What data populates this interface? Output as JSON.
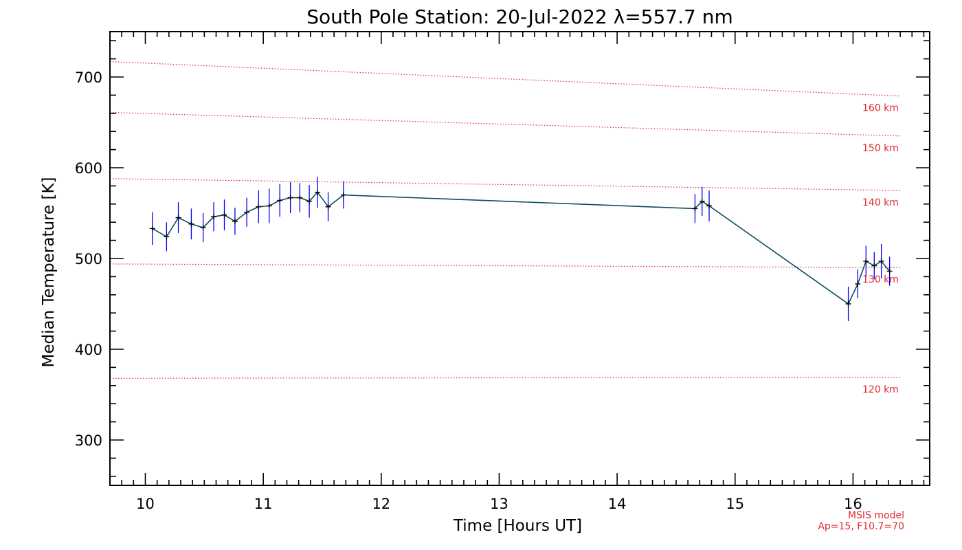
{
  "chart_data": {
    "type": "line",
    "title": "South Pole Station: 20-Jul-2022 λ=557.7 nm",
    "xlabel": "Time [Hours UT]",
    "ylabel": "Median Temperature [K]",
    "xlim": [
      9.7,
      16.65
    ],
    "ylim": [
      250,
      750
    ],
    "xticks": [
      10,
      11,
      12,
      13,
      14,
      15,
      16
    ],
    "yticks": [
      300,
      400,
      500,
      600,
      700
    ],
    "grid": false,
    "colors": {
      "line": "#0d4a5e",
      "marker": "#000000",
      "error_bar": "#0000ff",
      "model": "#e0282e"
    },
    "series": [
      {
        "x": [
          10.06,
          10.18,
          10.28,
          10.39,
          10.49,
          10.58,
          10.67,
          10.76,
          10.86,
          10.96,
          11.05,
          11.14,
          11.23,
          11.31,
          11.39,
          11.46,
          11.55,
          11.68,
          14.66,
          14.72,
          14.78,
          15.96,
          16.04,
          16.11,
          16.18,
          16.24,
          16.31
        ],
        "y": [
          533,
          524,
          545,
          538,
          534,
          546,
          548,
          541,
          551,
          557,
          558,
          564,
          567,
          567,
          563,
          573,
          557,
          570,
          555,
          563,
          558,
          450,
          472,
          497,
          492,
          497,
          486
        ],
        "err": [
          18,
          16,
          17,
          17,
          16,
          16,
          17,
          15,
          16,
          18,
          19,
          18,
          17,
          16,
          18,
          17,
          16,
          15,
          16,
          16,
          17,
          19,
          16,
          17,
          15,
          19,
          16
        ]
      }
    ],
    "model_lines": [
      {
        "label": "160 km",
        "y_start": 717,
        "y_end": 679
      },
      {
        "label": "150 km",
        "y_start": 661,
        "y_end": 635
      },
      {
        "label": "140 km",
        "y_start": 588,
        "y_end": 575
      },
      {
        "label": "130 km",
        "y_start": 494,
        "y_end": 490
      },
      {
        "label": "120 km",
        "y_start": 368,
        "y_end": 369
      }
    ],
    "model_x_range": [
      9.7,
      16.4
    ],
    "annotations": [
      "MSIS model",
      "Ap=15, F10.7=70"
    ]
  }
}
